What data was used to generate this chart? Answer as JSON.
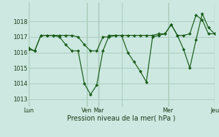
{
  "title": "Pression niveau de la mer( hPa )",
  "background_color": "#cce8e0",
  "plot_bg_color": "#cce8e0",
  "grid_color": "#aaccbb",
  "line_color": "#1a5c1a",
  "marker_color": "#1a5c1a",
  "vline_color": "#557755",
  "ylim": [
    1012.5,
    1019.2
  ],
  "yticks": [
    1013,
    1014,
    1015,
    1016,
    1017,
    1018
  ],
  "xlim": [
    0,
    240
  ],
  "xlabel_ticks": [
    0,
    75,
    90,
    120,
    180,
    240
  ],
  "xlabel_labels": [
    "Lun",
    "Ven",
    "Mar",
    "",
    "Mer",
    "Jeu"
  ],
  "vlines": [
    0,
    75,
    90,
    180,
    240
  ],
  "series1_x": [
    0,
    8,
    16,
    24,
    32,
    40,
    48,
    56,
    64,
    72,
    80,
    88,
    96,
    104,
    112,
    120,
    128,
    136,
    144,
    152,
    160,
    168,
    176,
    184,
    192,
    200,
    208,
    216,
    224,
    232,
    240
  ],
  "series1_y": [
    1016.2,
    1016.1,
    1017.1,
    1017.1,
    1017.1,
    1017.1,
    1017.1,
    1017.1,
    1017.0,
    1016.5,
    1016.1,
    1016.1,
    1017.0,
    1017.0,
    1017.1,
    1017.1,
    1017.1,
    1017.1,
    1017.1,
    1017.1,
    1017.1,
    1017.2,
    1017.2,
    1017.8,
    1017.1,
    1017.1,
    1017.2,
    1018.4,
    1018.1,
    1017.2,
    1017.2
  ],
  "series2_x": [
    0,
    8,
    16,
    24,
    32,
    40,
    48,
    56,
    64,
    72,
    80,
    88,
    96,
    104,
    112,
    120,
    128,
    136,
    144,
    152,
    160,
    168,
    176,
    184,
    192,
    200,
    208,
    216,
    224,
    232,
    240
  ],
  "series2_y": [
    1016.3,
    1016.1,
    1017.1,
    1017.1,
    1017.1,
    1017.0,
    1016.5,
    1016.1,
    1016.1,
    1014.0,
    1013.3,
    1013.9,
    1016.1,
    1017.1,
    1017.1,
    1017.1,
    1016.0,
    1015.4,
    1014.8,
    1014.1,
    1017.0,
    1017.1,
    1017.2,
    1017.8,
    1017.1,
    1016.2,
    1015.0,
    1016.8,
    1018.5,
    1017.6,
    1017.2
  ]
}
